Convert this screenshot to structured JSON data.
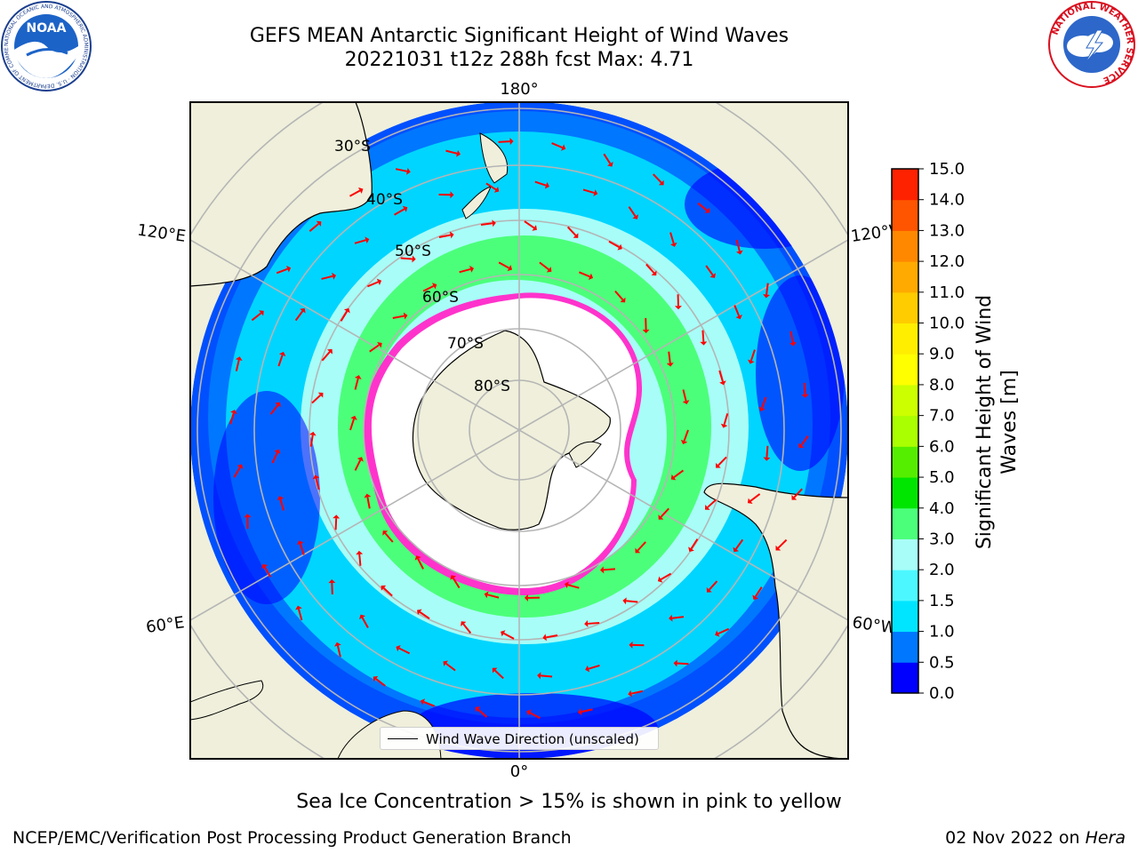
{
  "title": {
    "line1": "GEFS MEAN Antarctic Significant Height of Wind Waves",
    "line2": "20221031 t12z 288h fcst   Max: 4.71"
  },
  "logos": {
    "noaa_text": "NOAA",
    "noaa_ring": "NATIONAL OCEANIC AND ATMOSPHERIC ADMINISTRATION · U.S. DEPARTMENT OF COMMERCE",
    "nws_ring": "NATIONAL WEATHER SERVICE"
  },
  "map": {
    "longitude_labels": {
      "top": "180°",
      "bottom": "0°",
      "upper_left": "120°E",
      "upper_right": "120°W",
      "lower_left": "60°E",
      "lower_right": "60°W"
    },
    "latitude_labels": [
      "30°S",
      "40°S",
      "50°S",
      "60°S",
      "70°S",
      "80°S"
    ],
    "legend": "Wind Wave Direction (unscaled)",
    "arrow_color": "#ff0000",
    "land_color": "#efefdb",
    "ocean_bands": {
      "low": "#0000ff",
      "mid_low": "#0077ff",
      "mid": "#00e5ff",
      "mid_high": "#a8fdf8",
      "high": "#4cff7a",
      "sea_ice_edge": "#ff33cc",
      "sea_ice_fill": "#ffffff"
    }
  },
  "colorbar": {
    "label_line1": "Significant Height of Wind",
    "label_line2": "Waves [m]",
    "ticks": [
      "0.0",
      "0.5",
      "1.0",
      "1.5",
      "2.0",
      "3.0",
      "4.0",
      "5.0",
      "6.0",
      "7.0",
      "8.0",
      "9.0",
      "10.0",
      "11.0",
      "12.0",
      "13.0",
      "14.0",
      "15.0"
    ],
    "colors": [
      "#0000ff",
      "#0077ff",
      "#00e5ff",
      "#4df7ff",
      "#a8fdf8",
      "#4cff7a",
      "#00e600",
      "#55ee00",
      "#aaff00",
      "#ccff00",
      "#ffff00",
      "#ffee00",
      "#ffcc00",
      "#ffaa00",
      "#ff8800",
      "#ff5500",
      "#ff2200",
      "#ff0000"
    ]
  },
  "footer": {
    "note": "Sea Ice Concentration > 15% is shown in pink to yellow",
    "credit": "NCEP/EMC/Verification Post Processing Product Generation Branch",
    "date": "02 Nov 2022 on",
    "host": "Hera"
  }
}
